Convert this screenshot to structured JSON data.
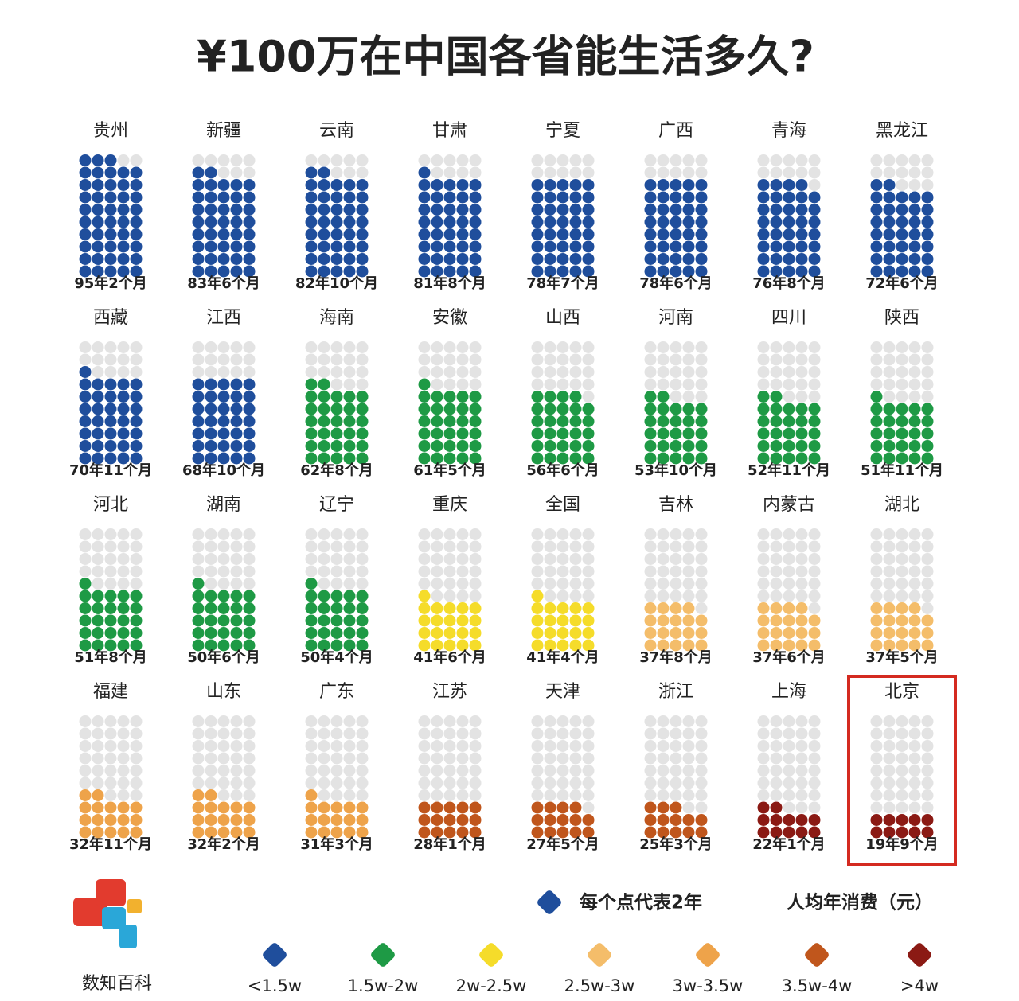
{
  "chart_data": {
    "type": "dot-matrix",
    "title": "¥100万在中国各省能生活多久?",
    "categories": [
      "贵州",
      "新疆",
      "云南",
      "甘肃",
      "宁夏",
      "广西",
      "青海",
      "黑龙江",
      "西藏",
      "江西",
      "海南",
      "安徽",
      "山西",
      "河南",
      "四川",
      "陕西",
      "河北",
      "湖南",
      "辽宁",
      "重庆",
      "全国",
      "吉林",
      "内蒙古",
      "湖北",
      "福建",
      "山东",
      "广东",
      "江苏",
      "天津",
      "浙江",
      "上海",
      "北京"
    ],
    "values": [
      95.17,
      83.5,
      82.83,
      81.67,
      78.58,
      78.5,
      76.67,
      72.5,
      70.92,
      68.83,
      62.67,
      61.42,
      56.5,
      53.83,
      52.92,
      51.92,
      51.67,
      50.5,
      50.33,
      41.5,
      41.33,
      37.67,
      37.5,
      37.42,
      32.92,
      32.17,
      31.25,
      28.08,
      27.42,
      25.25,
      22.08,
      19.75
    ],
    "value_labels": [
      "95年2个月",
      "83年6个月",
      "82年10个月",
      "81年8个月",
      "78年7个月",
      "78年6个月",
      "76年8个月",
      "72年6个月",
      "70年11个月",
      "68年10个月",
      "62年8个月",
      "61年5个月",
      "56年6个月",
      "53年10个月",
      "52年11个月",
      "51年11个月",
      "51年8个月",
      "50年6个月",
      "50年4个月",
      "41年6个月",
      "41年4个月",
      "37年8个月",
      "37年6个月",
      "37年5个月",
      "32年11个月",
      "32年2个月",
      "31年3个月",
      "28年1个月",
      "27年5个月",
      "25年3个月",
      "22年1个月",
      "19年9个月"
    ],
    "colors": [
      "#1f4e9c",
      "#1f4e9c",
      "#1f4e9c",
      "#1f4e9c",
      "#1f4e9c",
      "#1f4e9c",
      "#1f4e9c",
      "#1f4e9c",
      "#1f4e9c",
      "#1f4e9c",
      "#1e9a45",
      "#1e9a45",
      "#1e9a45",
      "#1e9a45",
      "#1e9a45",
      "#1e9a45",
      "#1e9a45",
      "#1e9a45",
      "#1e9a45",
      "#f5dc2a",
      "#f5dc2a",
      "#f4bd6a",
      "#f4bd6a",
      "#f4bd6a",
      "#eea34a",
      "#eea34a",
      "#eea34a",
      "#c0561c",
      "#c0561c",
      "#c0561c",
      "#8b1a14",
      "#8b1a14"
    ],
    "dot_value": 2,
    "dot_note": "每个点代表2年",
    "legend_title": "人均年消费（元）",
    "legend": [
      {
        "label": "<1.5w",
        "color": "#1f4e9c"
      },
      {
        "label": "1.5w-2w",
        "color": "#1e9a45"
      },
      {
        "label": "2w-2.5w",
        "color": "#f5dc2a"
      },
      {
        "label": "2.5w-3w",
        "color": "#f4bd6a"
      },
      {
        "label": "3w-3.5w",
        "color": "#eea34a"
      },
      {
        "label": "3.5w-4w",
        "color": "#c0561c"
      },
      {
        "label": ">4w",
        "color": "#8b1a14"
      }
    ],
    "source": "数知百科"
  }
}
